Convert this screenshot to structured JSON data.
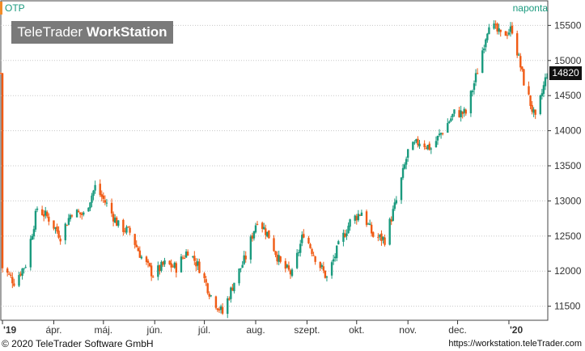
{
  "header": {
    "ticker": "OTP",
    "interval": "naponta"
  },
  "logo": {
    "brand_regular": "TeleTrader ",
    "brand_bold": "WorkStation"
  },
  "footer": {
    "copyright": "© 2020 TeleTrader Software GmbH",
    "url": "https://workstation.teleTrader.com"
  },
  "colors": {
    "up": "#1a9a7e",
    "down": "#f05a14",
    "axis": "#333333",
    "grid": "#c8c8c8",
    "accent": "#f28c28"
  },
  "chart_data": {
    "type": "candlestick",
    "title": "OTP",
    "interval": "naponta",
    "last_value": "14820",
    "ylim": [
      11300,
      15850
    ],
    "y_ticks": [
      11500,
      12000,
      12500,
      13000,
      13500,
      14000,
      14500,
      15000,
      15500
    ],
    "y_tick_labels": [
      "11500",
      "12000",
      "12500",
      "13000",
      "13500",
      "14000",
      "14500",
      "15000",
      "15500"
    ],
    "x_tick_labels": [
      "'19",
      "ápr.",
      "máj.",
      "jún.",
      "júl.",
      "aug.",
      "szept.",
      "okt.",
      "nov.",
      "dec.",
      "'20"
    ],
    "x_tick_dates": [
      "2019-03-01",
      "2019-04-01",
      "2019-05-01",
      "2019-06-01",
      "2019-07-01",
      "2019-08-01",
      "2019-09-01",
      "2019-10-01",
      "2019-11-01",
      "2019-12-01",
      "2020-01-01"
    ],
    "x_range": [
      "2019-02-28",
      "2020-01-24"
    ],
    "grid": true,
    "approximate_close_path": [
      [
        "2019-03-01",
        12050
      ],
      [
        "2019-03-08",
        11850
      ],
      [
        "2019-03-15",
        12100
      ],
      [
        "2019-03-22",
        12900
      ],
      [
        "2019-03-29",
        12750
      ],
      [
        "2019-04-05",
        12500
      ],
      [
        "2019-04-12",
        12850
      ],
      [
        "2019-04-19",
        12800
      ],
      [
        "2019-04-26",
        13200
      ],
      [
        "2019-05-03",
        12950
      ],
      [
        "2019-05-10",
        12650
      ],
      [
        "2019-05-17",
        12550
      ],
      [
        "2019-05-24",
        12200
      ],
      [
        "2019-05-31",
        11950
      ],
      [
        "2019-06-07",
        12100
      ],
      [
        "2019-06-14",
        12050
      ],
      [
        "2019-06-21",
        12300
      ],
      [
        "2019-06-28",
        12050
      ],
      [
        "2019-07-05",
        11650
      ],
      [
        "2019-07-12",
        11400
      ],
      [
        "2019-07-19",
        11850
      ],
      [
        "2019-07-26",
        12200
      ],
      [
        "2019-08-02",
        12750
      ],
      [
        "2019-08-09",
        12500
      ],
      [
        "2019-08-16",
        12100
      ],
      [
        "2019-08-23",
        11950
      ],
      [
        "2019-08-30",
        12550
      ],
      [
        "2019-09-06",
        12200
      ],
      [
        "2019-09-13",
        11900
      ],
      [
        "2019-09-20",
        12350
      ],
      [
        "2019-09-27",
        12700
      ],
      [
        "2019-10-04",
        12850
      ],
      [
        "2019-10-11",
        12500
      ],
      [
        "2019-10-18",
        12450
      ],
      [
        "2019-10-25",
        13000
      ],
      [
        "2019-11-01",
        13700
      ],
      [
        "2019-11-08",
        13850
      ],
      [
        "2019-11-15",
        13750
      ],
      [
        "2019-11-22",
        14000
      ],
      [
        "2019-11-29",
        14250
      ],
      [
        "2019-12-06",
        14250
      ],
      [
        "2019-12-13",
        14850
      ],
      [
        "2019-12-20",
        15550
      ],
      [
        "2019-12-27",
        15350
      ],
      [
        "2020-01-03",
        15450
      ],
      [
        "2020-01-10",
        14700
      ],
      [
        "2020-01-17",
        14150
      ],
      [
        "2020-01-24",
        14820
      ]
    ]
  }
}
